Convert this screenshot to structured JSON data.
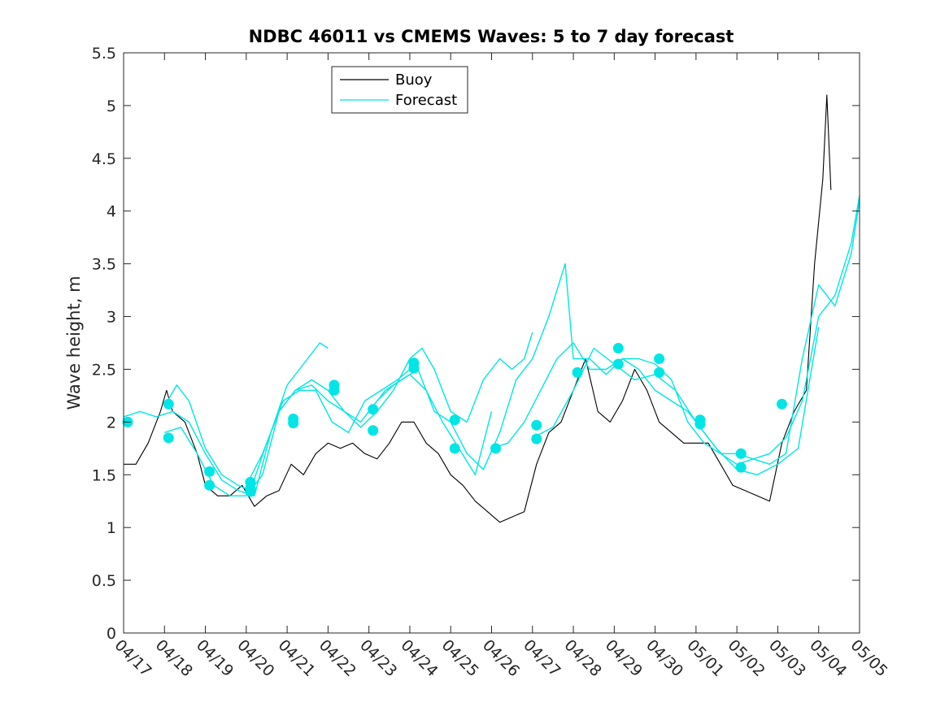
{
  "chart_data": {
    "type": "line",
    "title": "NDBC 46011 vs CMEMS Waves: 5 to 7 day forecast",
    "xlabel": "",
    "ylabel": "Wave height, m",
    "ylim": [
      0,
      5.5
    ],
    "xlim": [
      0,
      18
    ],
    "yticks": [
      0,
      0.5,
      1,
      1.5,
      2,
      2.5,
      3,
      3.5,
      4,
      4.5,
      5,
      5.5
    ],
    "ytick_labels": [
      "0",
      "0.5",
      "1",
      "1.5",
      "2",
      "2.5",
      "3",
      "3.5",
      "4",
      "4.5",
      "5",
      "5.5"
    ],
    "xticks": [
      0,
      1,
      2,
      3,
      4,
      5,
      6,
      7,
      8,
      9,
      10,
      11,
      12,
      13,
      14,
      15,
      16,
      17,
      18
    ],
    "xtick_labels": [
      "04/17",
      "04/18",
      "04/19",
      "04/20",
      "04/21",
      "04/22",
      "04/23",
      "04/24",
      "04/25",
      "04/26",
      "04/27",
      "04/28",
      "04/29",
      "04/30",
      "05/01",
      "05/02",
      "05/03",
      "05/04",
      "05/05"
    ],
    "legend": {
      "position": "top-center",
      "entries": [
        {
          "label": "Buoy",
          "color": "#000000"
        },
        {
          "label": "Forecast",
          "color": "#00e5e5"
        }
      ]
    },
    "series": [
      {
        "name": "Buoy",
        "color": "#000000",
        "x": [
          0,
          0.3,
          0.6,
          0.9,
          1.05,
          1.2,
          1.5,
          1.8,
          2,
          2.3,
          2.6,
          2.9,
          3.2,
          3.5,
          3.8,
          4.1,
          4.4,
          4.7,
          5,
          5.3,
          5.6,
          5.9,
          6.2,
          6.5,
          6.8,
          7.1,
          7.4,
          7.7,
          8,
          8.3,
          8.6,
          8.9,
          9.2,
          9.5,
          9.8,
          10.1,
          10.4,
          10.7,
          11,
          11.3,
          11.6,
          11.9,
          12.2,
          12.5,
          12.8,
          13.1,
          13.4,
          13.7,
          14,
          14.3,
          14.6,
          14.9,
          15.2,
          15.5,
          15.8,
          16.1,
          16.4,
          16.7,
          16.9,
          17.1,
          17.2,
          17.3
        ],
        "y": [
          1.6,
          1.6,
          1.8,
          2.1,
          2.3,
          2.1,
          2.0,
          1.7,
          1.4,
          1.3,
          1.3,
          1.4,
          1.2,
          1.3,
          1.35,
          1.6,
          1.5,
          1.7,
          1.8,
          1.75,
          1.8,
          1.7,
          1.65,
          1.8,
          2.0,
          2.0,
          1.8,
          1.7,
          1.5,
          1.4,
          1.25,
          1.15,
          1.05,
          1.1,
          1.15,
          1.6,
          1.9,
          2.0,
          2.3,
          2.6,
          2.1,
          2.0,
          2.2,
          2.5,
          2.3,
          2.0,
          1.9,
          1.8,
          1.8,
          1.8,
          1.6,
          1.4,
          1.35,
          1.3,
          1.25,
          1.8,
          2.1,
          2.3,
          3.5,
          4.3,
          5.1,
          4.2
        ]
      },
      {
        "name": "Forecast 1",
        "color": "#00e5e5",
        "x": [
          0,
          0.4,
          0.8,
          1.2,
          1.6,
          2,
          2.4,
          2.8,
          3.2,
          3.6,
          4,
          4.4,
          4.8,
          5
        ],
        "y": [
          2.05,
          2.1,
          2.05,
          2.1,
          2.0,
          1.7,
          1.45,
          1.35,
          1.3,
          1.9,
          2.35,
          2.55,
          2.75,
          2.7
        ]
      },
      {
        "name": "Forecast 2",
        "color": "#00e5e5",
        "x": [
          1,
          1.3,
          1.6,
          2,
          2.4,
          2.8,
          3.1,
          3.5,
          3.9,
          4.3,
          4.7,
          5.1,
          5.5,
          5.9,
          6.3,
          6.7,
          7
        ],
        "y": [
          2.15,
          2.35,
          2.2,
          1.75,
          1.5,
          1.4,
          1.35,
          1.8,
          2.2,
          2.3,
          2.3,
          2.0,
          1.9,
          2.2,
          2.3,
          2.4,
          2.5
        ]
      },
      {
        "name": "Forecast 3",
        "color": "#00e5e5",
        "x": [
          1,
          1.4,
          1.8,
          2.2,
          2.6,
          3,
          3.4,
          3.8,
          4.2,
          4.6,
          5,
          5.4,
          5.8,
          6.2,
          6.6,
          7,
          7.4,
          7.8,
          8.2,
          8.6,
          9
        ],
        "y": [
          1.9,
          1.95,
          1.7,
          1.4,
          1.3,
          1.3,
          1.5,
          2.1,
          2.3,
          2.4,
          2.3,
          2.1,
          2.0,
          2.2,
          2.35,
          2.45,
          2.3,
          2.0,
          1.75,
          1.5,
          2.1
        ]
      },
      {
        "name": "Forecast 4",
        "color": "#00e5e5",
        "x": [
          3,
          3.4,
          3.8,
          4.2,
          4.6,
          5,
          5.4,
          5.8,
          6.2,
          6.6,
          7,
          7.3,
          7.6,
          8,
          8.4,
          8.8,
          9.2,
          9.5,
          9.8,
          10
        ],
        "y": [
          1.4,
          1.7,
          2.1,
          2.3,
          2.35,
          2.2,
          2.1,
          1.95,
          2.1,
          2.3,
          2.6,
          2.7,
          2.5,
          2.1,
          2.0,
          2.4,
          2.6,
          2.5,
          2.6,
          2.85
        ]
      },
      {
        "name": "Forecast 5",
        "color": "#00e5e5",
        "x": [
          6,
          6.4,
          6.8,
          7.2,
          7.6,
          8,
          8.4,
          8.8,
          9.2,
          9.6,
          10,
          10.4,
          10.8,
          11,
          11.4,
          11.8,
          12.2,
          12.6,
          13,
          13.4,
          13.8,
          14.2,
          14.6,
          15,
          15.4,
          15.8,
          16.2,
          16.6,
          17,
          17.4,
          17.8,
          18
        ],
        "y": [
          2.1,
          2.3,
          2.4,
          2.5,
          2.1,
          2.0,
          1.7,
          1.55,
          1.9,
          2.4,
          2.6,
          3.0,
          3.5,
          2.6,
          2.6,
          2.45,
          2.6,
          2.6,
          2.55,
          2.4,
          2.0,
          1.8,
          1.7,
          1.7,
          1.65,
          1.6,
          1.7,
          2.6,
          3.3,
          3.1,
          3.6,
          4.1
        ]
      },
      {
        "name": "Forecast 6",
        "color": "#00e5e5",
        "x": [
          9,
          9.4,
          9.8,
          10.2,
          10.6,
          11,
          11.4,
          11.8,
          12.2,
          12.6,
          13,
          13.4,
          13.8,
          14.2,
          14.6,
          15,
          15.4,
          15.8,
          16.2,
          16.6,
          17,
          17.4,
          17.8,
          18
        ],
        "y": [
          1.75,
          1.8,
          2.0,
          2.3,
          2.6,
          2.75,
          2.5,
          2.5,
          2.6,
          2.5,
          2.3,
          2.2,
          2.1,
          1.9,
          1.7,
          1.6,
          1.65,
          1.7,
          1.85,
          2.2,
          3.0,
          3.2,
          3.7,
          4.15
        ]
      },
      {
        "name": "Forecast 7",
        "color": "#00e5e5",
        "x": [
          10,
          10.5,
          11,
          11.5,
          12,
          12.5,
          13,
          13.5,
          14,
          14.5,
          15,
          15.5,
          16,
          16.5,
          17
        ],
        "y": [
          1.85,
          1.95,
          2.3,
          2.7,
          2.55,
          2.4,
          2.45,
          2.3,
          2.0,
          1.75,
          1.55,
          1.5,
          1.6,
          1.75,
          2.9
        ]
      }
    ],
    "markers": {
      "color": "#00e5e5",
      "x": [
        0.1,
        1.1,
        1.1,
        2.1,
        2.1,
        3.1,
        3.1,
        3.1,
        4.15,
        4.15,
        5.15,
        5.15,
        6.1,
        6.1,
        7.1,
        7.1,
        8.1,
        8.1,
        9.1,
        10.1,
        10.1,
        11.1,
        12.1,
        12.1,
        13.1,
        13.1,
        14.1,
        14.1,
        15.1,
        15.1,
        16.1
      ],
      "y": [
        2.0,
        2.17,
        1.85,
        1.53,
        1.4,
        1.43,
        1.37,
        1.34,
        2.03,
        1.99,
        2.35,
        2.3,
        2.12,
        1.92,
        2.56,
        2.51,
        2.02,
        1.75,
        1.75,
        1.97,
        1.84,
        2.47,
        2.7,
        2.55,
        2.6,
        2.47,
        2.02,
        1.98,
        1.7,
        1.57,
        2.17
      ]
    }
  }
}
